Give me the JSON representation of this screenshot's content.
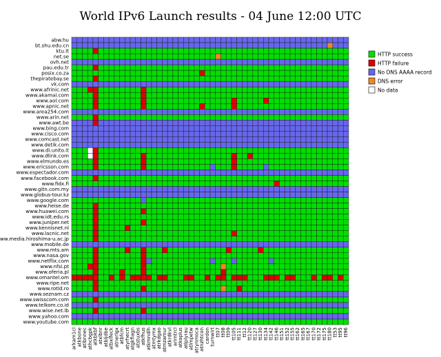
{
  "chart_data": {
    "type": "heatmap",
    "title": "World IPv6 Launch results - 04 June 12:00 UTC",
    "legend_position": "right",
    "legend": [
      {
        "key": "S",
        "label": "HTTP success",
        "color": "#00e000"
      },
      {
        "key": "F",
        "label": "HTTP failure",
        "color": "#e00000"
      },
      {
        "key": "N",
        "label": "No DNS AAAA record",
        "color": "#6666ee"
      },
      {
        "key": "D",
        "label": "DNS error",
        "color": "#ee8822"
      },
      {
        "key": "W",
        "label": "No data",
        "color": "#ffffff"
      }
    ],
    "rows": [
      "abw.hu",
      "bt.shu.edu.cn",
      "ktu.lt",
      "net.se",
      "ovh.net",
      "pau.edu.tr",
      "posix.co.za",
      "thepiratebay.se",
      "vk.com",
      "www.afrinic.net",
      "www.akamai.com",
      "www.aol.com",
      "www.apnic.net",
      "www.area254.com",
      "www.arin.net",
      "www.awt.be",
      "www.bing.com",
      "www.cisco.com",
      "www.comcast.net",
      "www.detik.com",
      "www.di.unito.it",
      "www.dlink.com",
      "www.elmundo.es",
      "www.ericsson.com",
      "www.espectador.com",
      "www.facebook.com",
      "www.fidx.fi",
      "www.gitn.com.my",
      "www.globus-tour.kz",
      "www.google.com",
      "www.heise.de",
      "www.huawei.com",
      "www.idt.edu.rs",
      "www.juniper.net",
      "www.kennisnet.nl",
      "www.lacnic.net",
      "www.media.hiroshima-u.ac.jp",
      "www.mobile.de",
      "www.mts.am",
      "www.nasa.gov",
      "www.netflix.com",
      "www.nfsi.pt",
      "www.oferia.pl",
      "www.omantel.om",
      "www.ripe.net",
      "www.rotld.ro",
      "www.seznam.cz",
      "www.swisscom.com",
      "www.telkom.co.id",
      "www.wise.net.lb",
      "www.yahoo.com",
      "www.youtube.com"
    ],
    "columns": [
      "arkam1cl",
      "atkbone",
      "atlbnnec",
      "athcbgpk",
      "atkbkbf",
      "atxlbnr",
      "atbljdbe",
      "atbxlfeck",
      "atnerlgx",
      "atbfcm",
      "atyrhecrt",
      "atgkfiagn",
      "atstuxbs",
      "atkfhus",
      "atkmndlh",
      "atmtymx",
      "atrkdgao",
      "atmzamur",
      "atkrdkvl",
      "arimtrcl",
      "atkaplus",
      "atlplyrau",
      "atlmpetw",
      "atrynmoca",
      "atnzhtcon",
      "cardon",
      "turnwirt",
      "tt07",
      "tt08",
      "tt09",
      "tt105",
      "tt111",
      "tt12",
      "tt120",
      "tt127",
      "tt130",
      "tt134",
      "tt142",
      "tt146",
      "tt151",
      "tt152",
      "tt155",
      "tt162",
      "tt165",
      "tt167",
      "tt170",
      "tt172",
      "tt175",
      "tt180",
      "tt53",
      "tt95",
      "tt96"
    ],
    "matrix": [
      "NNNNNNNNNNNNNNNNNNNNNNNNNNNNNNNNNNNNNNNNNNNNNNNNNNNN",
      "NNNNNNNNNNNNNNNNNNNNNNNNNNNNNNNNNNNNNNNNNNNNNNNNDNNN",
      "SSSSFSSSSSSSSSSSSSSSSSSSSSSSSSSSSSSSSSSSSSSSSSSSSSSS",
      "SSSSSSSSSSSSSSSSSSSSSSSSSSSDSSSSSSSSSSSSSSSSSSSSSSSS",
      "NNNNNNNNNNNNNNNNNNNNNNNNNNNNNNNNNNNNNNNNNNNNNNNNNNNN",
      "SSSSFSSSSSSSSSSSSSSSSSSSSSSSSSSSSSSSSSSSSSSSSSSSSSSS",
      "SSSSSSSSSSSSSSSSSSSSSSSSFSSSSSSSSSSSSSSSSSSSSSSSSSSS",
      "SSSSFSSSSSSSSSSSSSSSSSSSSSSSSSSSSSSSSSSSSSSSSSSSSSSS",
      "NNNNNNNNNNNNNNNNNNNNNNNNNNNNNNNNNNNNNNNNNNNNNNNNNNNN",
      "SSSFFSSSSSSSSFSSSSSSSSSSSSSSSSSSSSSSSSSSSSSSSSSSSSSS",
      "SSSSFSSSSSSSSFSSSSSSSSSSSSSSSSSSSSSSSSSSSSSSSSSSSSSS",
      "SSSSFSSSSSSSSFSSSSSSSSSSSSSSSSFSSSSSFSSSSSSSSSSSSSSS",
      "SSSSFSSSSSSSSFSSSSSSSSSSFSSSSSFSSSSSSSSSSSSSSSSSSSSS",
      "NNNNNNNNNNNNNNNNNNNNNNNNNNNNNNNNNNNNNNNNNNNNNNNNNNNN",
      "SSSSFSSSSSSSSSSSSSSSSSSSSSSSSSSSSSSSSSSSSSSSSSSSSSSS",
      "NNNNFNNNNNNNNNNNNNNNNNNNNNNNNNNNNNNNNNNNNNNNNNNNNNNN",
      "NNNNNNNNNNNNNNNNNNNNNNNNNNNNNNNNNNNNNNNNNNNNNNNNNNNN",
      "NNNNNNNNNNNNNNNNNNNNNNNNNNNNNNNNNNNNNNNNNNNNNNNNNNNN",
      "NNNNNNNNNNNNNNNNNNNNNNNNNNNNNNNNNNNNNNNNNNNNNNNNNNNN",
      "NNNNNNNNNNNNNNNNNNNNNNNNNNNNNNNNNNNNNNNNNNNNNNNNNNNN",
      "SSSWFSSSSSSSSSSSSSSSSSSSSSSSSSSSSSSSSSSSSSSSSSSSSSSS",
      "SSSWFSSSSSSSSFSSSSSSSSSSSSSSSSFSSFSSSSSSSSSSSSSSSSSS",
      "SSSSFSSSSSSSSFSSSSSSSSSSSSSSSSFSSSSSSSSSSSSSSSSSSSSS",
      "SSSSFSSSSSSSSFSSSSSSSSSSSSNSSSFSSSSSNSSSSSSSSSSSSSSS",
      "NNNNNNNNNNNNNNNNNNNNNNNNNNNNNNNNNNNNNNNNNNNNNNNNNNNN",
      "SSSSFSSSSSSSSSSSSSSSSSSSSSSSSSSSSSSSSSSSSSSSSSSSSSSS",
      "SSSSSSSSSSSSSSSSSSSSSSSSSSSSSSSSSSSSSSFSSSSSSSSSSSSS",
      "NNNNNNNNNNNNNNNNNNNNNNNNNNNNNNNNNNNNNNNNNNNNNNNNNNNN",
      "NNNNNNNNNNNNNNNNNNNNNNNNNNNNNNNNNNNNNNNNNNNNNNNNNNNN",
      "SSSSSSSSSSSSSNSSSSSSSSSSSSSSSSSSSSSSSSSSSSSSSSSSSSSS",
      "SSSSFSSSSSSSSSSSSSSSSSSSSSSSSSSSSSSSSSSSSSSSSSSSSSSS",
      "SSSSFSSSSSSSSFSSSSSSSSSSSSSSSSSSSSSSSSSSSSSSSSSSSSSS",
      "SSSSFSSSSSSSSSSSSSSSSSSSSSSSSSSSSSSSSSSSSSSSSSSSSSSS",
      "SSSSFSSSSSSSSFSSSSSSSSSSSSSSSSSSSSSSSSSSSSSSSSSSSSSS",
      "SSSSFSSSSSFSSSSSSSSSSSSSSSSSSSSSSSSSSSSSSSSSSSSSSSSS",
      "SSSSFSSSSSSSSSSSSSSSSSSSSSSSSSFSSSSSSSSSSSSSSSSSSSSS",
      "SSSSFSSSSSSSSSSSSSSSSSSSSSSSSSSSSSSSSSSSSSSSSSSSSSSS",
      "NNNNNNNNNNNNNNNNNNNNNNNNNNNNNNNNNNNNNNNNNNNNNNNNNNNN",
      "SSSSFSSSSSFSSFSSSFSSSSSSSSSSSFSSSSSFSSSSSSSSSSSSSSSS",
      "SSSSFSSSSSSSSFSSSSSSSSSSSSSSSSSSSSSSSSSSSSSSSSSSSSSS",
      "SSSSFSSSSSSSSFNSSSSSSSSSSSNSSSNSSSSSSNSSSSSSSSSSSSSS",
      "SSSFFSSSSSSSSFSSSSSSSSSSSSSSDSSSSSSSSSSSSSSSSSSSSSSS",
      "SSSSFSSSSFSSSFSSSSSSSSSSSSSSFSSSSSSSSSSSSSSSSSSSSSSS",
      "FFFFFSSFSFSFFFFSFFSSSFFSSFSFFSFFFSSSFFFSFFSSSFSFFSFS",
      "SSSSFSSSSSSSSSSSSSSSSSSSSSSSSSSSSSSSSSSSSSSSSSSSSSSS",
      "SSSSFSSSSSSSSFSSSSSSSSSSSSSSDSSFSSSSSSSSSSSSSSSSSSSS",
      "NNNNNNNNNNNNNNNNNNNNNNNNNNNNNNNNNNNNNNNNNNNNNNNNNNNN",
      "SSSSFSSSSSSSSSSSSSSSSSSSSSSSSSSSSSSSSSSSSSSSSSSSSSSS",
      "NNNNNNNNNNNNNNNNNNNNNNNNNNNNNNNNNNNNNNNNNNNNNNNNNNNN",
      "SSSSFSSSSSSSSFSSSSSSSSSSSSSSSSSSSSSSSSSSSSSSSSSSSSSS",
      "NNNNNNNNNNNNNNNNNNNNNNNNNNNNNNNNNNNNNNNNNNNNNNNNNNNN",
      "SSSSSSSSSSSSSSSSSSSSSSSSSSSSSSSSSSSSSSSSSSSSSSSSSSSS"
    ]
  }
}
